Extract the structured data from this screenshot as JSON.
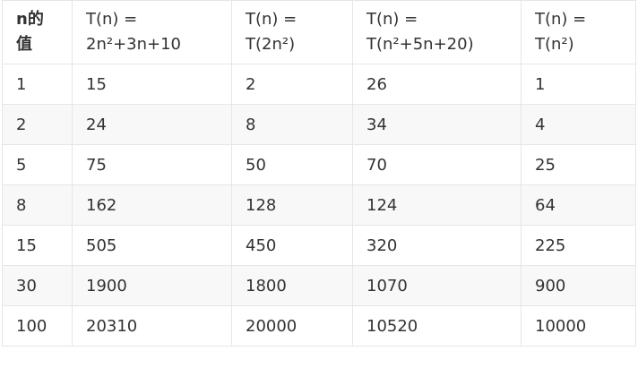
{
  "table": {
    "headers": [
      {
        "line1": "n的",
        "line2": "值"
      },
      {
        "line1": "T(n) =",
        "line2": "2n²+3n+10"
      },
      {
        "line1": "T(n) =",
        "line2": "T(2n²)"
      },
      {
        "line1": "T(n) =",
        "line2": "T(n²+5n+20)"
      },
      {
        "line1": "T(n) =",
        "line2": "T(n²)"
      }
    ],
    "rows": [
      [
        "1",
        "15",
        "2",
        "26",
        "1"
      ],
      [
        "2",
        "24",
        "8",
        "34",
        "4"
      ],
      [
        "5",
        "75",
        "50",
        "70",
        "25"
      ],
      [
        "8",
        "162",
        "128",
        "124",
        "64"
      ],
      [
        "15",
        "505",
        "450",
        "320",
        "225"
      ],
      [
        "30",
        "1900",
        "1800",
        "1070",
        "900"
      ],
      [
        "100",
        "20310",
        "20000",
        "10520",
        "10000"
      ]
    ]
  },
  "colors": {
    "text": "#333333",
    "border": "#e6e6e6",
    "row_alt": "#f8f8f8"
  }
}
